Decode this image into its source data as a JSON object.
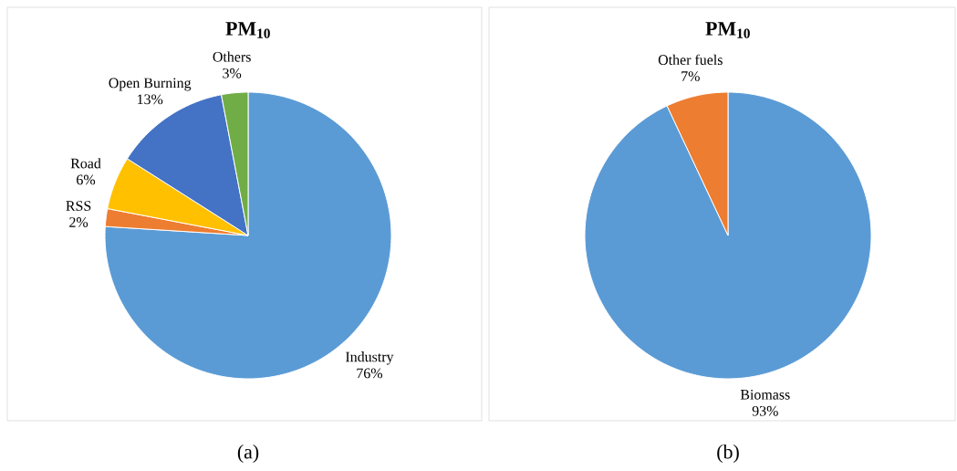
{
  "chart_data": [
    {
      "type": "pie",
      "title": "PM$_{10}$",
      "categories": [
        "Industry",
        "RSS",
        "Road",
        "Open Burning",
        "Others"
      ],
      "values": [
        76,
        2,
        6,
        13,
        3
      ],
      "value_labels": [
        "76%",
        "2%",
        "6%",
        "13%",
        "3%"
      ],
      "colors": [
        "#5b9bd5",
        "#ed7d31",
        "#ffc000",
        "#4472c4",
        "#70ad47"
      ],
      "annotations": [
        "(a)"
      ]
    },
    {
      "type": "pie",
      "title": "PM$_{10}$",
      "categories": [
        "Biomass",
        "Other fuels"
      ],
      "values": [
        93,
        7
      ],
      "value_labels": [
        "93%",
        "7%"
      ],
      "colors": [
        "#5b9bd5",
        "#ed7d31"
      ],
      "annotations": [
        "(b)"
      ]
    }
  ]
}
